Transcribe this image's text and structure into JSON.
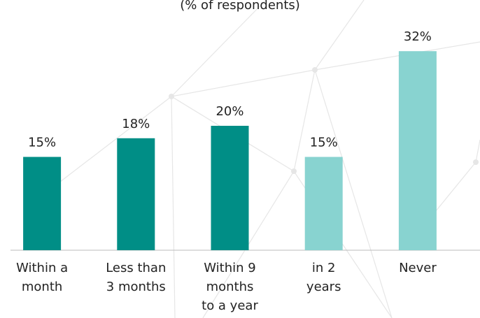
{
  "chart_data": {
    "type": "bar",
    "subtitle": "(% of respondents)",
    "categories": [
      [
        "Within a",
        "month"
      ],
      [
        "Less than",
        "3 months"
      ],
      [
        "Within 9",
        "months",
        "to a year"
      ],
      [
        "in 2",
        "years"
      ],
      [
        "Never"
      ]
    ],
    "values": [
      15,
      18,
      20,
      15,
      32
    ],
    "value_labels": [
      "15%",
      "18%",
      "20%",
      "15%",
      "32%"
    ],
    "colors": [
      "#008e86",
      "#008e86",
      "#008e86",
      "#88d3d0",
      "#88d3d0"
    ],
    "ylim": [
      0,
      40
    ]
  }
}
